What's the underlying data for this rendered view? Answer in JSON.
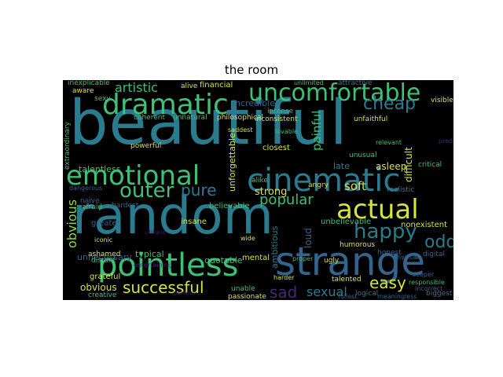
{
  "title": "the room",
  "palette": {
    "background": "#000000",
    "yellow": "#d6e33c",
    "green": "#3fbf77",
    "teal": "#2b7b8e",
    "blue": "#32648e",
    "purple": "#482878",
    "violet": "#3b0f70",
    "lime": "#8fd744"
  },
  "words": [
    "beautiful",
    "random",
    "strange",
    "pointless",
    "cinematic",
    "dramatic",
    "uncomfortable",
    "emotional",
    "actual",
    "happy",
    "outer",
    "pure",
    "popular",
    "successful",
    "easy",
    "odd",
    "cheap",
    "artistic",
    "sad",
    "sexual",
    "obvious",
    "painful",
    "soft",
    "genuine",
    "strong",
    "unnecessary",
    "incredible",
    "financial",
    "philosophical",
    "typical",
    "quotable",
    "mental",
    "ambitious",
    "believable",
    "insane",
    "talentless",
    "unforgettable",
    "closest",
    "alike",
    "late",
    "angry",
    "asleep",
    "difficult",
    "loud",
    "unbelievable",
    "nonexistent",
    "realistic",
    "humorous",
    "honest",
    "ugly",
    "unfaithful",
    "unusual",
    "intense",
    "inconsistent",
    "attractive",
    "inexplicable",
    "aware",
    "sexy",
    "extraordinary",
    "naive",
    "greater",
    "ashamed",
    "grateful",
    "creative",
    "hardest",
    "afraid",
    "distant",
    "unable",
    "passionate",
    "talented",
    "logical",
    "biggest",
    "meaningless",
    "fullest",
    "iconic",
    "powerful",
    "coherent",
    "unnatural",
    "alive",
    "unlimited",
    "relevant",
    "critical",
    "visible",
    "predictable",
    "incorrect",
    "digital",
    "responsible",
    "physical",
    "deeper",
    "proper",
    "wide",
    "dangerous",
    "lovable",
    "unique",
    "saddest",
    "perfect",
    "harder",
    "entertaining"
  ]
}
